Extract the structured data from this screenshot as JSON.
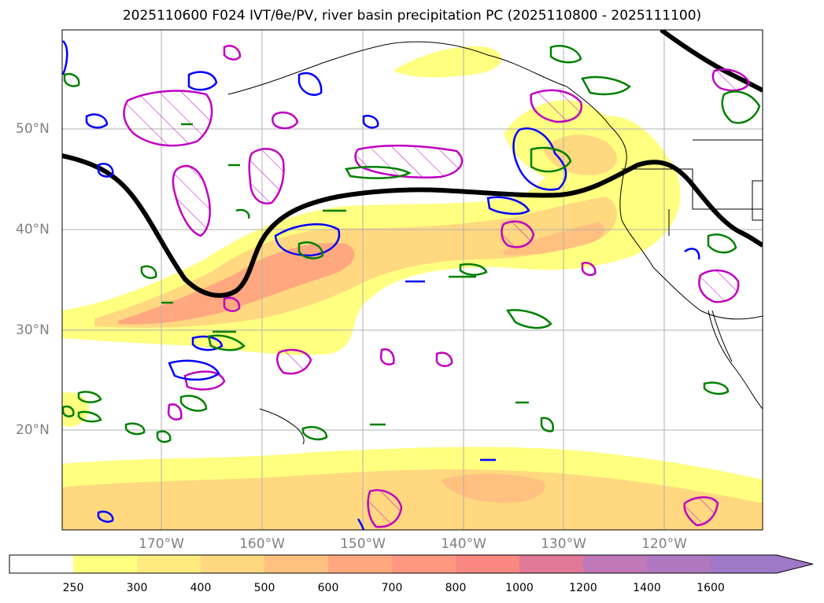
{
  "title": "2025110600 F024 IVT/θe/PV, river basin precipitation PC (2025110800 - 2025111100)",
  "lat_labels": [
    "50°N",
    "40°N",
    "30°N",
    "20°N"
  ],
  "lon_labels": [
    "170°W",
    "160°W",
    "150°W",
    "140°W",
    "130°W",
    "120°W"
  ],
  "colorbar": {
    "ticks": [
      "250",
      "300",
      "400",
      "500",
      "600",
      "700",
      "800",
      "1000",
      "1200",
      "1400",
      "1600"
    ],
    "colors": [
      "#ffffff",
      "#ffff80",
      "#ffeb80",
      "#ffd880",
      "#ffc080",
      "#ffa880",
      "#ff9880",
      "#f88880",
      "#e07898",
      "#c078b8",
      "#a078c8"
    ]
  },
  "colors": {
    "ivt_light": "#ffff80",
    "ivt_mid": "#ffd880",
    "ivt_dark": "#ff9880",
    "theta_e_line": "#000000",
    "pv_contour": "#c000c0",
    "blue_contour": "#0000ff",
    "green_contour": "#008000",
    "grid": "#b0b0b0"
  }
}
